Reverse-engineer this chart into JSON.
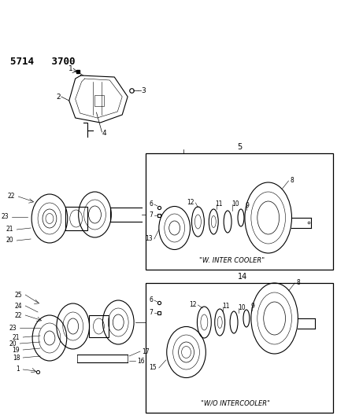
{
  "bg_color": "#ffffff",
  "header": "5714   3700",
  "label_intercooler": "\"W. INTER COOLER\"",
  "label_no_intercooler": "\"W/O INTERCOOLER\"",
  "box1_num": "5",
  "box2_num": "14",
  "figsize": [
    4.28,
    5.33
  ],
  "dpi": 100
}
